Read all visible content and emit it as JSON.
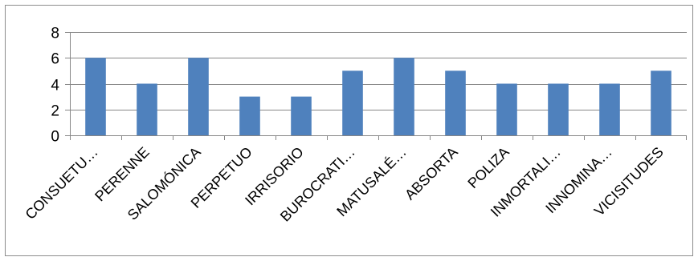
{
  "chart_data": {
    "type": "bar",
    "title": "",
    "xlabel": "",
    "ylabel": "",
    "categories": [
      "CONSUETU…",
      "PERENNE",
      "SALOMÓNICA",
      "PERPETUO",
      "IRRISORIO",
      "BUROCRATI…",
      "MATUSALÉ…",
      "ABSORTA",
      "POLIZA",
      "INMORTALI…",
      "INNOMINA…",
      "VICISITUDES"
    ],
    "series": [
      {
        "values": [
          6,
          4,
          6,
          3,
          3,
          5,
          6,
          5,
          4,
          4,
          4,
          5
        ]
      }
    ],
    "ylim": [
      0,
      8
    ],
    "yticks": [
      0,
      2,
      4,
      6,
      8
    ],
    "grid": true,
    "legend": "none",
    "colors": {
      "bar": "#4f81bd",
      "grid": "#878787",
      "axis": "#878787",
      "border": "#8c8c8c"
    }
  }
}
